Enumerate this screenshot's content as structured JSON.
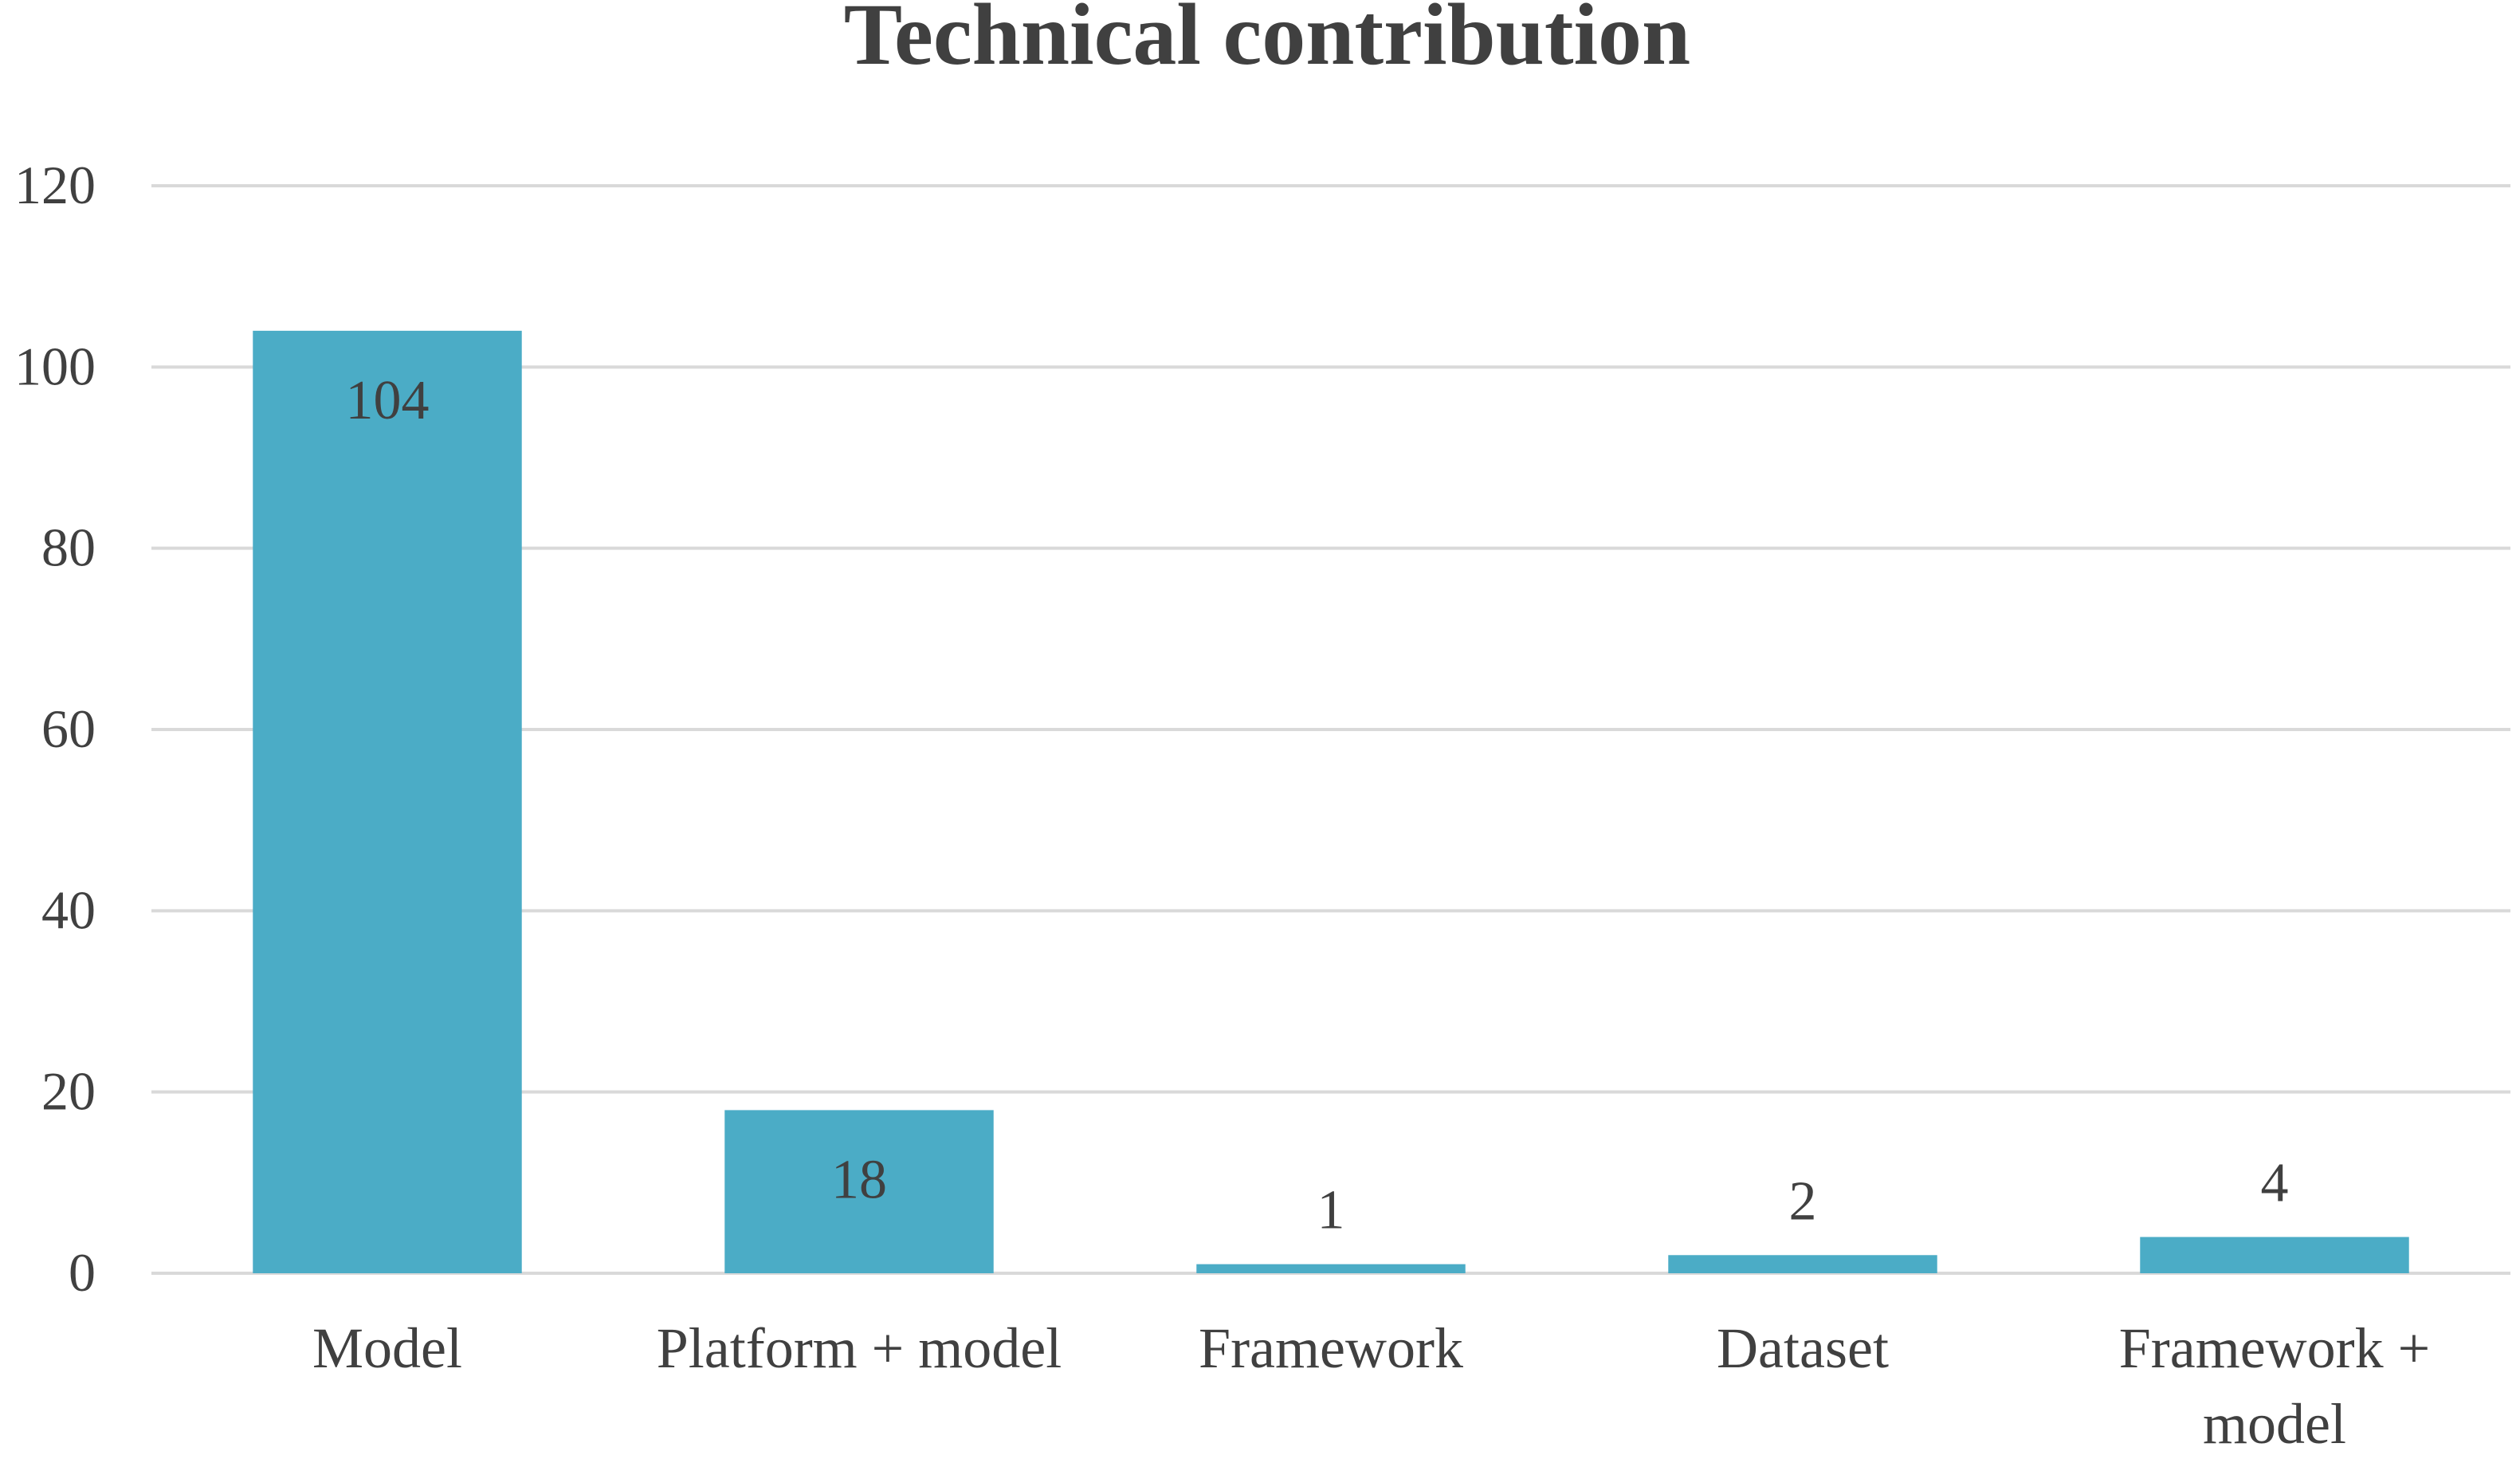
{
  "chart_data": {
    "type": "bar",
    "title": "Technical contribution",
    "xlabel": "",
    "ylabel": "",
    "categories": [
      [
        "Model"
      ],
      [
        "Platform + model"
      ],
      [
        "Framework"
      ],
      [
        "Dataset"
      ],
      [
        "Framework +",
        "model"
      ]
    ],
    "values": [
      104,
      18,
      1,
      2,
      4
    ],
    "data_labels": [
      "104",
      "18",
      "1",
      "2",
      "4"
    ],
    "ylim": [
      0,
      120
    ],
    "yticks": [
      0,
      20,
      40,
      60,
      80,
      100,
      120
    ],
    "ytick_labels": [
      "0",
      "20",
      "40",
      "60",
      "80",
      "100",
      "120"
    ],
    "grid": true,
    "legend": "none",
    "colors": {
      "bar": "#4bacc6",
      "text": "#404040",
      "grid": "#d9d9d9"
    }
  }
}
